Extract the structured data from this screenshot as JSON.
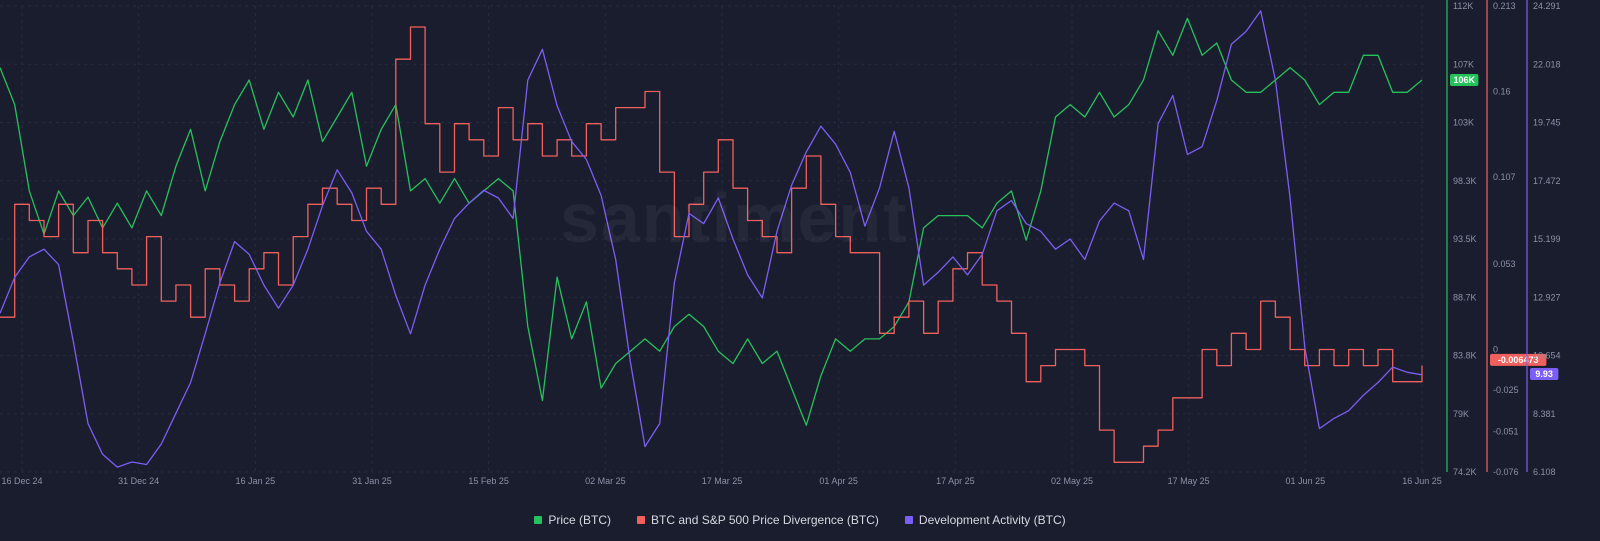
{
  "chart_data": {
    "type": "line",
    "watermark": "santiment",
    "x_labels": [
      "16 Dec 24",
      "31 Dec 24",
      "16 Jan 25",
      "31 Jan 25",
      "15 Feb 25",
      "02 Mar 25",
      "17 Mar 25",
      "01 Apr 25",
      "17 Apr 25",
      "02 May 25",
      "17 May 25",
      "01 Jun 25",
      "16 Jun 25"
    ],
    "axes": {
      "price": {
        "ticks": [
          "112K",
          "107K",
          "103K",
          "98.3K",
          "93.5K",
          "88.7K",
          "83.8K",
          "79K",
          "74.2K"
        ],
        "range": [
          74200,
          112000
        ],
        "color": "#26c15b",
        "current_label": "106K",
        "current": 106000
      },
      "divergence": {
        "ticks": [
          "0.213",
          "0.16",
          "0.107",
          "0.053",
          "0",
          "-0.025",
          "-0.051",
          "-0.076"
        ],
        "range": [
          -0.076,
          0.213
        ],
        "color": "#f0615d",
        "current_label": "-0.006473",
        "current": -0.006473
      },
      "dev": {
        "ticks": [
          "24.291",
          "22.018",
          "19.745",
          "17.472",
          "15.199",
          "12.927",
          "10.654",
          "8.381",
          "6.108"
        ],
        "range": [
          6.108,
          24.291
        ],
        "color": "#7b5ef3",
        "current_label": "9.93",
        "current": 9.93
      }
    },
    "series": [
      {
        "name": "Price (BTC)",
        "axis": "price",
        "color": "#26c15b",
        "step": false,
        "values": [
          107000,
          104000,
          97000,
          93500,
          97000,
          95000,
          96500,
          94000,
          96000,
          94000,
          97000,
          95000,
          99000,
          102000,
          97000,
          101000,
          104000,
          106000,
          102000,
          105000,
          103000,
          106000,
          101000,
          103000,
          105000,
          99000,
          102000,
          104000,
          97000,
          98000,
          96000,
          98000,
          96000,
          97000,
          98000,
          97000,
          86000,
          80000,
          90000,
          85000,
          88000,
          81000,
          83000,
          84000,
          85000,
          84000,
          86000,
          87000,
          86000,
          84000,
          83000,
          85000,
          83000,
          84000,
          81000,
          78000,
          82000,
          85000,
          84000,
          85000,
          85000,
          86000,
          88000,
          94000,
          95000,
          95000,
          95000,
          94000,
          96000,
          97000,
          93000,
          97000,
          103000,
          104000,
          103000,
          105000,
          103000,
          104000,
          106000,
          110000,
          108000,
          111000,
          108000,
          109000,
          106000,
          105000,
          105000,
          106000,
          107000,
          106000,
          104000,
          105000,
          105000,
          108000,
          108000,
          105000,
          105000,
          106000
        ]
      },
      {
        "name": "BTC and S&P 500 Price Divergence (BTC)",
        "axis": "divergence",
        "color": "#f0615d",
        "step": true,
        "values": [
          0.02,
          0.09,
          0.08,
          0.07,
          0.09,
          0.06,
          0.08,
          0.06,
          0.05,
          0.04,
          0.07,
          0.03,
          0.04,
          0.02,
          0.05,
          0.04,
          0.03,
          0.05,
          0.06,
          0.04,
          0.07,
          0.09,
          0.1,
          0.09,
          0.08,
          0.1,
          0.09,
          0.18,
          0.2,
          0.14,
          0.11,
          0.14,
          0.13,
          0.12,
          0.15,
          0.13,
          0.14,
          0.12,
          0.13,
          0.12,
          0.14,
          0.13,
          0.15,
          0.15,
          0.16,
          0.11,
          0.07,
          0.09,
          0.11,
          0.13,
          0.1,
          0.08,
          0.07,
          0.06,
          0.1,
          0.12,
          0.09,
          0.07,
          0.06,
          0.06,
          0.01,
          0.02,
          0.03,
          0.01,
          0.03,
          0.05,
          0.06,
          0.04,
          0.03,
          0.01,
          -0.02,
          -0.01,
          0.0,
          0.0,
          -0.01,
          -0.05,
          -0.07,
          -0.07,
          -0.06,
          -0.05,
          -0.03,
          -0.03,
          0.0,
          -0.01,
          0.01,
          0.0,
          0.03,
          0.02,
          0.0,
          -0.01,
          0.0,
          -0.01,
          0.0,
          -0.01,
          0.0,
          -0.02,
          -0.02,
          -0.01
        ]
      },
      {
        "name": "Development Activity (BTC)",
        "axis": "dev",
        "color": "#7b5ef3",
        "step": false,
        "values": [
          12.3,
          13.7,
          14.5,
          14.8,
          14.2,
          11.2,
          8.0,
          6.8,
          6.3,
          6.5,
          6.4,
          7.2,
          8.4,
          9.6,
          11.5,
          13.5,
          15.1,
          14.6,
          13.4,
          12.5,
          13.4,
          14.8,
          16.5,
          17.9,
          17.0,
          15.5,
          14.8,
          13.0,
          11.5,
          13.4,
          14.8,
          16.0,
          16.6,
          17.1,
          16.8,
          16.0,
          21.4,
          22.6,
          20.4,
          19.0,
          18.3,
          16.9,
          14.4,
          10.4,
          7.1,
          8.0,
          13.5,
          16.2,
          15.8,
          16.8,
          15.2,
          13.8,
          12.9,
          15.5,
          17.3,
          18.6,
          19.6,
          18.9,
          17.8,
          15.7,
          17.2,
          19.4,
          17.2,
          13.4,
          13.9,
          14.5,
          13.8,
          14.6,
          16.3,
          16.7,
          15.8,
          15.5,
          14.8,
          15.2,
          14.4,
          15.9,
          16.6,
          16.3,
          14.4,
          19.7,
          20.8,
          18.5,
          18.8,
          20.6,
          22.8,
          23.3,
          24.1,
          21.4,
          16.8,
          11.0,
          7.8,
          8.2,
          8.5,
          9.1,
          9.6,
          10.2,
          10.0,
          9.9
        ]
      }
    ]
  },
  "legend": [
    {
      "label": "Price (BTC)",
      "color": "#26c15b"
    },
    {
      "label": "BTC and S&P 500 Price Divergence (BTC)",
      "color": "#f0615d"
    },
    {
      "label": "Development Activity (BTC)",
      "color": "#7b5ef3"
    }
  ]
}
